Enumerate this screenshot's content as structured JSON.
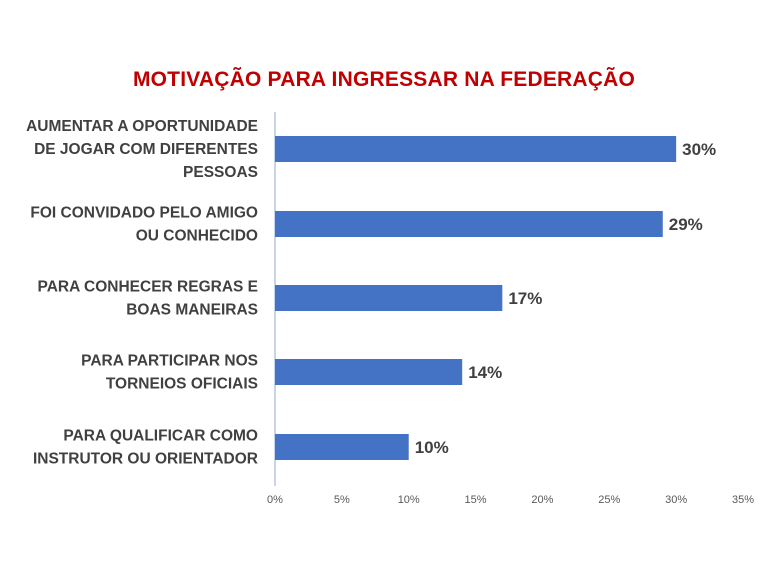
{
  "chart_data": {
    "type": "bar",
    "orientation": "horizontal",
    "title": "MOTIVAÇÃO PARA INGRESSAR NA FEDERAÇÃO",
    "title_color": "#C00000",
    "bar_color": "#4472C4",
    "axis_color": "#8EA9DB",
    "grid": false,
    "categories": [
      [
        "AUMENTAR A OPORTUNIDADE",
        "DE JOGAR COM DIFERENTES",
        "PESSOAS"
      ],
      [
        "FOI CONVIDADO PELO AMIGO",
        "OU CONHECIDO"
      ],
      [
        "PARA CONHECER REGRAS E",
        "BOAS MANEIRAS"
      ],
      [
        "PARA PARTICIPAR NOS",
        "TORNEIOS OFICIAIS"
      ],
      [
        "PARA QUALIFICAR COMO",
        "INSTRUTOR OU ORIENTADOR"
      ]
    ],
    "values": [
      30,
      29,
      17,
      14,
      10
    ],
    "data_labels": [
      "30%",
      "29%",
      "17%",
      "14%",
      "10%"
    ],
    "xlim": [
      0,
      35
    ],
    "x_ticks": [
      0,
      5,
      10,
      15,
      20,
      25,
      30,
      35
    ],
    "x_tick_labels": [
      "0%",
      "5%",
      "10%",
      "15%",
      "20%",
      "25%",
      "30%",
      "35%"
    ]
  }
}
